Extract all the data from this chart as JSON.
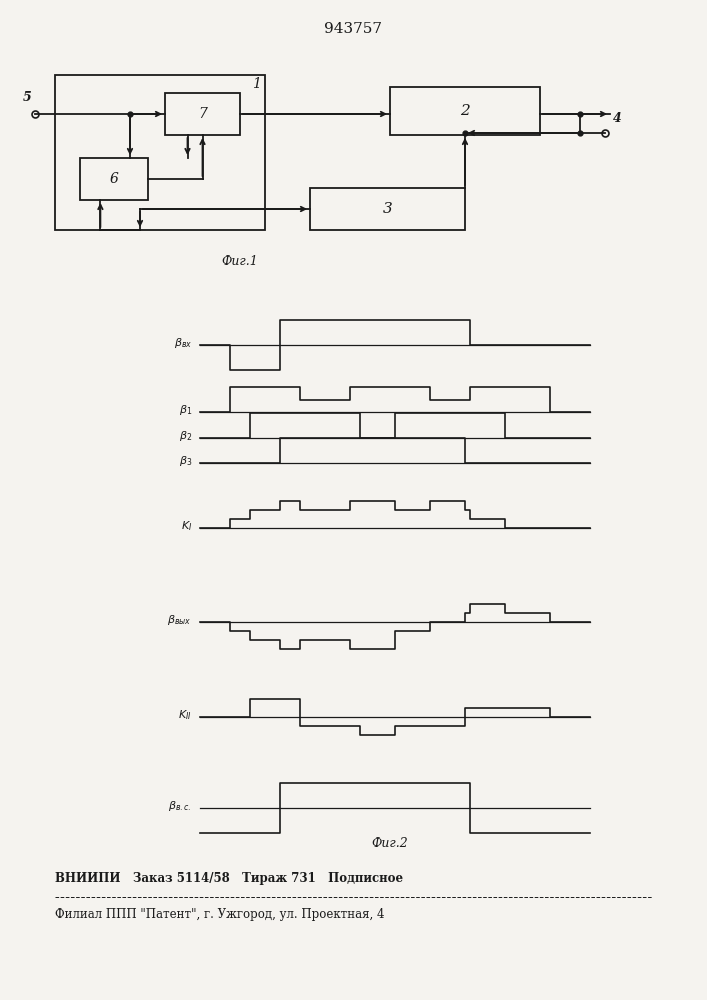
{
  "title": "943757",
  "fig_width": 7.07,
  "fig_height": 10.0,
  "bg_color": "#f5f3ef",
  "line_color": "#1a1a1a",
  "fig1_label": "Фиг.1",
  "fig2_label": "Фиг.2",
  "footer_line1": "ВНИИПИ   Заказ 5114/58   Тираж 731   Подписное",
  "footer_line2": "Филиал ППП \"Патент\", г. Ужгород, ул. Проектная, 4"
}
